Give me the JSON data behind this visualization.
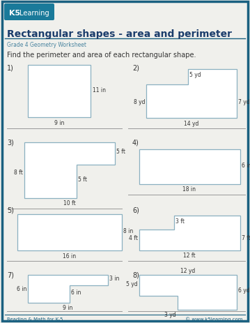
{
  "title": "Rectangular shapes - area and perimeter",
  "subtitle": "Grade 4 Geometry Worksheet",
  "instruction": "Find the perimeter and area of each rectangular shape.",
  "bg_color": "#f0f0ec",
  "border_color": "#1a6080",
  "shape_edge": "#8ab0c0",
  "shape_fill": "#ffffff",
  "text_dark": "#222222",
  "text_blue": "#4a7a9b",
  "footer_left": "Reading & Math for K-5",
  "footer_right": "© www.k5learning.com"
}
